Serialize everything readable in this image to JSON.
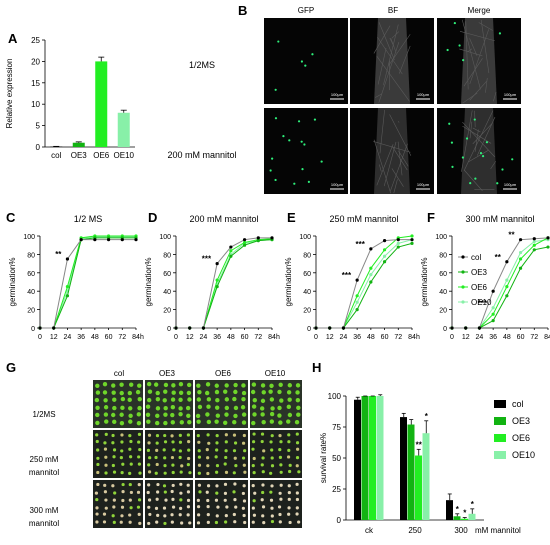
{
  "panel_labels": {
    "A": "A",
    "B": "B",
    "C": "C",
    "D": "D",
    "E": "E",
    "F": "F",
    "G": "G",
    "H": "H"
  },
  "colors": {
    "col": "#000000",
    "OE3": "#12b312",
    "OE6": "#22ee22",
    "OE10": "#88f0a8",
    "gfp": "#2ef07a"
  },
  "microscopy": {
    "columns": [
      "GFP",
      "BF",
      "Merge"
    ],
    "rows": [
      "1/2MS",
      "200 mM mannitol"
    ],
    "scale_label": "100μm"
  },
  "plates": {
    "columns": [
      "col",
      "OE3",
      "OE6",
      "OE10"
    ],
    "rows": [
      [
        "1/2MS"
      ],
      [
        "250 mM",
        "mannitol"
      ],
      [
        "300 mM",
        "mannitol"
      ]
    ]
  },
  "chart_data": [
    {
      "id": "A",
      "type": "bar",
      "ylabel": "Relative expression",
      "categories": [
        "col",
        "OE3",
        "OE6",
        "OE10"
      ],
      "values": [
        0.1,
        1.0,
        20.0,
        8.0
      ],
      "errors": [
        0.05,
        0.2,
        1.0,
        0.6
      ],
      "ylim": [
        0,
        25
      ],
      "yticks": [
        0,
        5,
        10,
        15,
        20,
        25
      ]
    },
    {
      "id": "C",
      "type": "line",
      "title": "1/2 MS",
      "xlabel": "",
      "x_unit": "h",
      "ylabel": "germination%",
      "x": [
        0,
        12,
        24,
        36,
        48,
        60,
        72,
        84
      ],
      "ylim": [
        0,
        100
      ],
      "yticks": [
        0,
        20,
        40,
        60,
        80,
        100
      ],
      "series": [
        {
          "name": "col",
          "values": [
            0,
            0,
            75,
            96,
            96,
            96,
            96,
            96
          ]
        },
        {
          "name": "OE3",
          "values": [
            0,
            0,
            35,
            96,
            98,
            98,
            98,
            98
          ]
        },
        {
          "name": "OE6",
          "values": [
            0,
            0,
            45,
            98,
            100,
            100,
            100,
            100
          ]
        },
        {
          "name": "OE10",
          "values": [
            0,
            0,
            40,
            97,
            99,
            99,
            99,
            99
          ]
        }
      ],
      "annotations": [
        {
          "x": 24,
          "y": 75,
          "text": "**"
        }
      ]
    },
    {
      "id": "D",
      "type": "line",
      "title": "200 mM mannitol",
      "x_unit": "h",
      "ylabel": "germination%",
      "x": [
        0,
        12,
        24,
        36,
        48,
        60,
        72,
        84
      ],
      "ylim": [
        0,
        100
      ],
      "yticks": [
        0,
        20,
        40,
        60,
        80,
        100
      ],
      "series": [
        {
          "name": "col",
          "values": [
            0,
            0,
            0,
            70,
            88,
            96,
            98,
            98
          ]
        },
        {
          "name": "OE3",
          "values": [
            0,
            0,
            0,
            45,
            78,
            90,
            95,
            96
          ]
        },
        {
          "name": "OE6",
          "values": [
            0,
            0,
            0,
            52,
            84,
            93,
            96,
            97
          ]
        },
        {
          "name": "OE10",
          "values": [
            0,
            0,
            0,
            48,
            80,
            92,
            95,
            96
          ]
        }
      ],
      "annotations": [
        {
          "x": 36,
          "y": 70,
          "text": "***"
        }
      ]
    },
    {
      "id": "E",
      "type": "line",
      "title": "250 mM mannitol",
      "x_unit": "h",
      "ylabel": "germination%",
      "x": [
        0,
        12,
        24,
        36,
        48,
        60,
        72,
        84
      ],
      "ylim": [
        0,
        100
      ],
      "yticks": [
        0,
        20,
        40,
        60,
        80,
        100
      ],
      "series": [
        {
          "name": "col",
          "values": [
            0,
            0,
            0,
            52,
            86,
            95,
            96,
            96
          ]
        },
        {
          "name": "OE3",
          "values": [
            0,
            0,
            0,
            20,
            50,
            72,
            88,
            92
          ]
        },
        {
          "name": "OE6",
          "values": [
            0,
            0,
            0,
            35,
            65,
            85,
            98,
            100
          ]
        },
        {
          "name": "OE10",
          "values": [
            0,
            0,
            0,
            28,
            58,
            78,
            92,
            96
          ]
        }
      ],
      "annotations": [
        {
          "x": 36,
          "y": 52,
          "text": "***"
        },
        {
          "x": 48,
          "y": 86,
          "text": "***"
        }
      ]
    },
    {
      "id": "F",
      "type": "line",
      "title": "300 mM mannitol",
      "x_unit": "h",
      "ylabel": "germination%",
      "x": [
        0,
        12,
        24,
        36,
        48,
        60,
        72,
        84
      ],
      "ylim": [
        0,
        100
      ],
      "yticks": [
        0,
        20,
        40,
        60,
        80,
        100
      ],
      "series": [
        {
          "name": "col",
          "values": [
            0,
            0,
            0,
            40,
            72,
            96,
            97,
            98
          ]
        },
        {
          "name": "OE3",
          "values": [
            0,
            0,
            0,
            8,
            35,
            65,
            85,
            88
          ]
        },
        {
          "name": "OE6",
          "values": [
            0,
            0,
            0,
            15,
            45,
            75,
            90,
            98
          ]
        },
        {
          "name": "OE10",
          "values": [
            0,
            0,
            0,
            22,
            52,
            82,
            94,
            96
          ]
        }
      ],
      "annotations": [
        {
          "x": 36,
          "y": 22,
          "text": "***"
        },
        {
          "x": 48,
          "y": 72,
          "text": "**"
        },
        {
          "x": 60,
          "y": 96,
          "text": "**"
        }
      ],
      "legend": {
        "position": "left",
        "entries": [
          "col",
          "OE3",
          "OE6",
          "OE10"
        ]
      }
    },
    {
      "id": "H",
      "type": "bar",
      "ylabel": "survival rate%",
      "categories": [
        "ck",
        "250",
        "300"
      ],
      "x_unit": "mM mannitol",
      "ylim": [
        0,
        100
      ],
      "yticks": [
        0,
        25,
        50,
        75,
        100
      ],
      "series": [
        {
          "name": "col",
          "values": [
            97,
            83,
            16
          ],
          "errors": [
            2,
            3,
            5
          ]
        },
        {
          "name": "OE3",
          "values": [
            100,
            77,
            3
          ],
          "errors": [
            0,
            4,
            2
          ]
        },
        {
          "name": "OE6",
          "values": [
            100,
            52,
            1
          ],
          "errors": [
            0,
            5,
            1
          ]
        },
        {
          "name": "OE10",
          "values": [
            100,
            70,
            5
          ],
          "errors": [
            1,
            10,
            4
          ]
        }
      ],
      "annotations": [
        {
          "group": 1,
          "series": 2,
          "text": "**"
        },
        {
          "group": 1,
          "series": 3,
          "text": "*"
        },
        {
          "group": 2,
          "series": 1,
          "text": "*"
        },
        {
          "group": 2,
          "series": 2,
          "text": "*"
        },
        {
          "group": 2,
          "series": 3,
          "text": "*"
        }
      ],
      "legend": {
        "position": "right",
        "entries": [
          "col",
          "OE3",
          "OE6",
          "OE10"
        ]
      }
    }
  ]
}
